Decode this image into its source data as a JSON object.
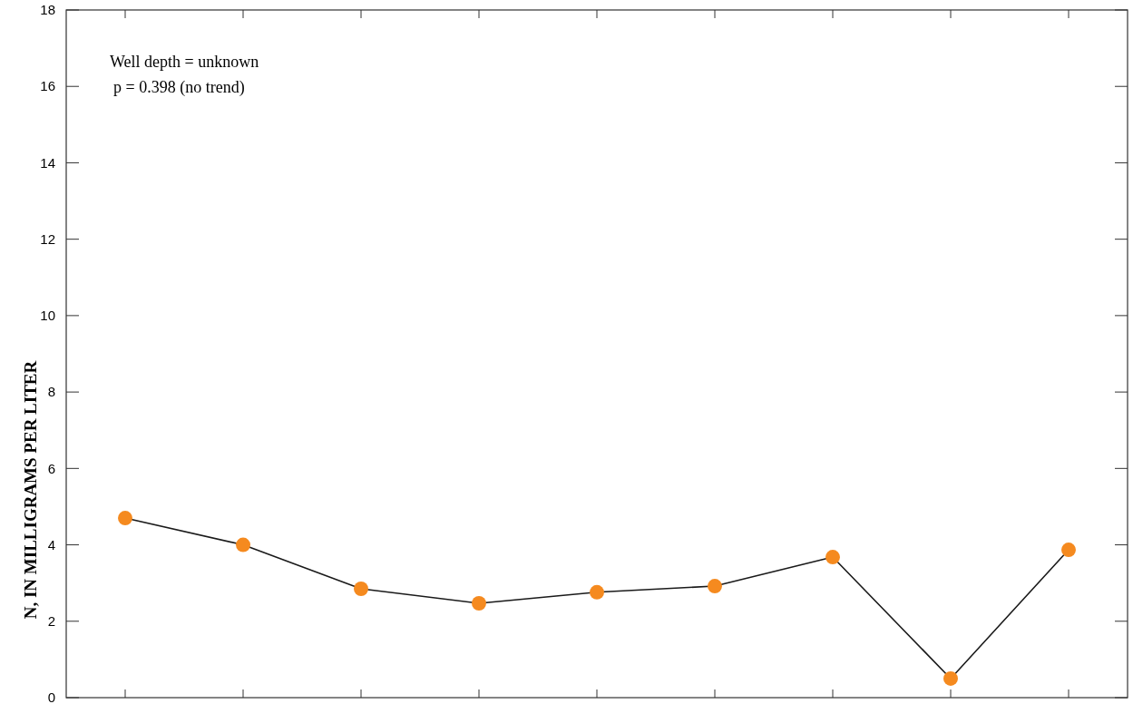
{
  "chart_data": {
    "type": "line",
    "ylabel": "N, IN MILLIGRAMS PER LITER",
    "annotations": [
      "Well depth = unknown",
      "p = 0.398 (no trend)"
    ],
    "categories": [
      null,
      null,
      null,
      null,
      null,
      null,
      null,
      null,
      null
    ],
    "series": [
      {
        "color": "#1a1a1a",
        "colors": [
          "#f58a1f",
          "#f58a1f",
          "#f58a1f",
          "#f58a1f",
          "#f58a1f",
          "#f58a1f",
          "#f58a1f",
          "#f58a1f",
          "#f58a1f"
        ],
        "values": [
          4.7,
          4.0,
          2.85,
          2.47,
          2.76,
          2.92,
          3.68,
          0.5,
          3.87
        ]
      }
    ],
    "ylim": [
      0,
      18
    ],
    "yticks": [
      0,
      2,
      4,
      6,
      8,
      10,
      12,
      14,
      16,
      18
    ],
    "marker": "circle",
    "grid": false
  }
}
